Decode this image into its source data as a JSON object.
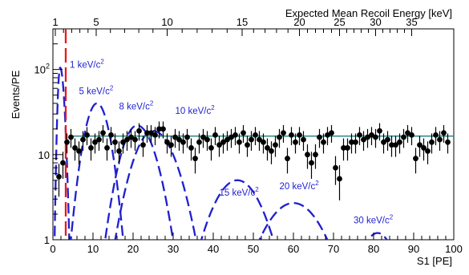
{
  "chart_data": {
    "type": "scatter",
    "xlabel": "S1 [PE]",
    "ylabel": "Events/PE",
    "top_axis_label": "Expected Mean Recoil Energy [keV]",
    "xlim": [
      0,
      100
    ],
    "ylim": [
      1,
      300
    ],
    "yscale": "log",
    "grid": false,
    "x_ticks": [
      0,
      10,
      20,
      30,
      40,
      50,
      60,
      70,
      80,
      90,
      100
    ],
    "y_ticks": [
      {
        "value": 1,
        "label": "1"
      },
      {
        "value": 10,
        "label": "10"
      },
      {
        "value": 100,
        "label": "10²"
      }
    ],
    "top_ticks": [
      {
        "label": "1",
        "s1": 0.6
      },
      {
        "label": "5",
        "s1": 10.8
      },
      {
        "label": "10",
        "s1": 28.5
      },
      {
        "label": "15",
        "s1": 47.2
      },
      {
        "label": "20",
        "s1": 61.5
      },
      {
        "label": "25",
        "s1": 71.5
      },
      {
        "label": "30",
        "s1": 80.5
      },
      {
        "label": "35",
        "s1": 89.5
      }
    ],
    "threshold_line": {
      "x": 3.2,
      "color": "#e8181b",
      "style": "dashed"
    },
    "fit_line": {
      "y": 16.5,
      "color": "#2a8a8a"
    },
    "series": [
      {
        "name": "data",
        "color": "#000000",
        "x": [
          1.5,
          2.5,
          3.5,
          4.5,
          5.5,
          6.5,
          7.5,
          8.5,
          9.5,
          10.5,
          11.5,
          12.5,
          13.5,
          14.5,
          15.5,
          16.5,
          17.5,
          18.5,
          19.5,
          20.5,
          21.5,
          22.5,
          23.5,
          24.5,
          25.5,
          26.5,
          27.5,
          28.5,
          29.5,
          30.5,
          31.5,
          32.5,
          33.5,
          34.5,
          35.5,
          36.5,
          37.5,
          38.5,
          39.5,
          40.5,
          41.5,
          42.5,
          43.5,
          44.5,
          45.5,
          46.5,
          47.5,
          48.5,
          49.5,
          50.5,
          51.5,
          52.5,
          53.5,
          54.5,
          55.5,
          56.5,
          57.5,
          58.5,
          59.5,
          60.5,
          61.5,
          62.5,
          63.5,
          64.5,
          65.5,
          66.5,
          67.5,
          68.5,
          69.5,
          70.5,
          71.5,
          72.5,
          73.5,
          74.5,
          75.5,
          76.5,
          77.5,
          78.5,
          79.5,
          80.5,
          81.5,
          82.5,
          83.5,
          84.5,
          85.5,
          86.5,
          87.5,
          88.5,
          89.5,
          90.5,
          91.5,
          92.5,
          93.5,
          94.5,
          95.5,
          96.5,
          97.5,
          98.5
        ],
        "values": [
          5.5,
          8,
          14,
          16,
          12,
          11,
          15,
          17,
          12,
          14,
          15,
          18,
          12,
          17,
          14,
          11,
          14,
          15,
          16,
          15,
          19,
          13,
          18,
          18,
          17,
          20,
          20,
          14,
          13,
          16,
          15,
          14,
          16,
          12,
          9,
          14,
          16,
          15,
          12,
          17,
          13,
          14,
          15,
          16,
          17,
          14,
          18,
          13,
          15,
          17,
          15,
          14,
          12,
          11,
          13,
          16,
          18,
          9,
          17,
          14,
          17,
          15,
          10,
          8,
          10,
          16,
          14,
          17,
          18,
          7,
          5.2,
          12,
          12,
          14,
          14,
          17,
          15,
          16,
          17,
          16,
          19,
          14,
          15,
          13,
          13,
          14,
          16,
          18,
          17,
          9,
          13,
          12,
          11,
          14,
          17,
          15,
          18,
          14
        ],
        "errors": [
          2.3,
          2.8,
          3.7,
          4,
          3.5,
          3.3,
          3.9,
          4.1,
          3.5,
          3.7,
          3.9,
          4.2,
          3.5,
          4.1,
          3.7,
          3.3,
          3.7,
          3.9,
          4,
          3.9,
          4.4,
          3.6,
          4.2,
          4.2,
          4.1,
          4.5,
          4.5,
          3.7,
          3.6,
          4,
          3.9,
          3.7,
          4,
          3.5,
          3,
          3.7,
          4,
          3.9,
          3.5,
          4.1,
          3.6,
          3.7,
          3.9,
          4,
          4.1,
          3.7,
          4.2,
          3.6,
          3.9,
          4.1,
          3.9,
          3.7,
          3.5,
          3.3,
          3.6,
          4,
          4.2,
          3,
          4.1,
          3.7,
          4.1,
          3.9,
          3.2,
          2.8,
          3.2,
          4,
          3.7,
          4.1,
          4.2,
          2.6,
          2.3,
          3.5,
          3.5,
          3.7,
          3.7,
          4.1,
          3.9,
          4,
          4.1,
          4,
          4.4,
          3.7,
          3.9,
          3.6,
          3.6,
          3.7,
          4,
          4.2,
          4.1,
          3,
          3.6,
          3.5,
          3.3,
          3.7,
          4.1,
          3.9,
          4.2,
          3.7
        ]
      },
      {
        "name": "1 keV/c²",
        "color": "#1f1fcf",
        "style": "dashed",
        "peak_x": 1.8,
        "peak_y": 105,
        "sigma_left": 0.45,
        "sigma_right": 0.75
      },
      {
        "name": "5 keV/c²",
        "color": "#1f1fcf",
        "style": "dashed",
        "peak_x": 11,
        "peak_y": 40,
        "sigma_left": 2.4,
        "sigma_right": 2.4
      },
      {
        "name": "8 keV/c²",
        "color": "#1f1fcf",
        "style": "dashed",
        "peak_x": 21,
        "peak_y": 22,
        "sigma_left": 3.2,
        "sigma_right": 3.6
      },
      {
        "name": "10 keV/c²",
        "color": "#1f1fcf",
        "style": "dashed",
        "peak_x": 25,
        "peak_y": 19,
        "sigma_left": 3.9,
        "sigma_right": 4.4
      },
      {
        "name": "15 keV/c²",
        "color": "#1f1fcf",
        "style": "dashed",
        "peak_x": 46,
        "peak_y": 5,
        "sigma_left": 5.0,
        "sigma_right": 5.0
      },
      {
        "name": "20 keV/c²",
        "color": "#1f1fcf",
        "style": "dashed",
        "peak_x": 60,
        "peak_y": 2.7,
        "sigma_left": 6.0,
        "sigma_right": 6.0
      },
      {
        "name": "30 keV/c²",
        "color": "#1f1fcf",
        "style": "dashed",
        "peak_x": 81,
        "peak_y": 1.2,
        "sigma_left": 3.8,
        "sigma_right": 3.8
      }
    ],
    "curve_labels": [
      {
        "text": "1 keV/c²",
        "at_x": 4.2,
        "at_y": 105
      },
      {
        "text": "5 keV/c²",
        "at_x": 6.5,
        "at_y": 51
      },
      {
        "text": "8 keV/c²",
        "at_x": 16.5,
        "at_y": 34
      },
      {
        "text": "10 keV/c²",
        "at_x": 30.5,
        "at_y": 30
      },
      {
        "text": "15 keV/c²",
        "at_x": 41.5,
        "at_y": 3.3
      },
      {
        "text": "20 keV/c²",
        "at_x": 56.5,
        "at_y": 3.9
      },
      {
        "text": "30 keV/c²",
        "at_x": 75,
        "at_y": 1.56
      }
    ]
  }
}
